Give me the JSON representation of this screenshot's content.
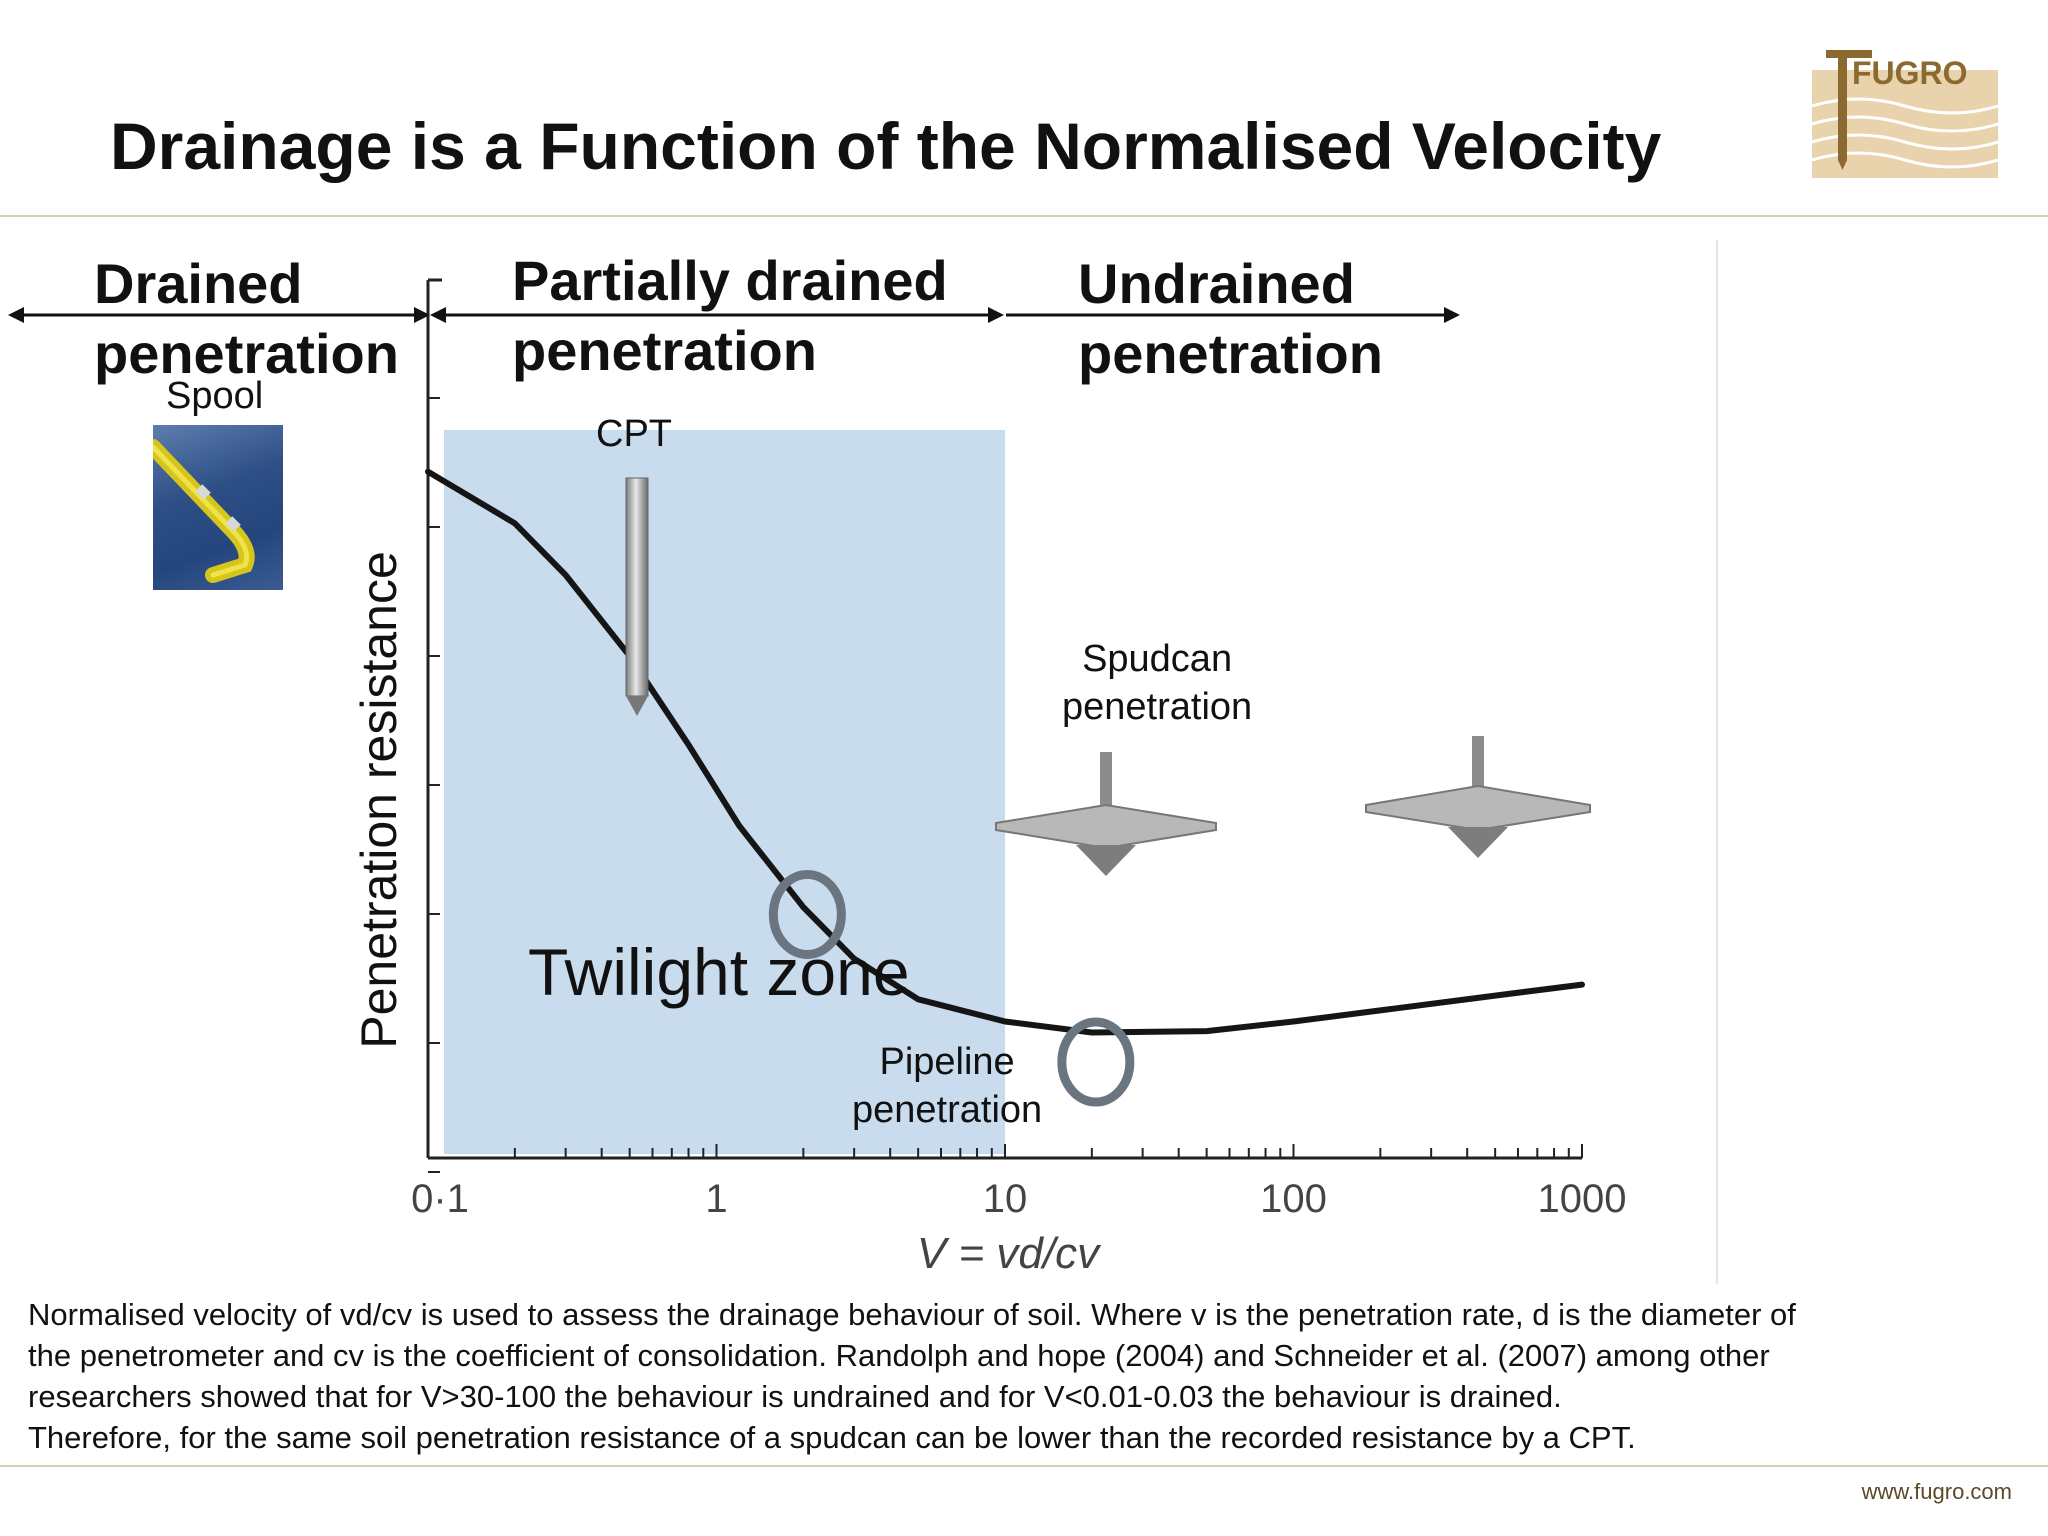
{
  "slide": {
    "title": "Drainage is a Function of the Normalised Velocity",
    "logo_text": "FUGRO",
    "footer_url": "www.fugro.com"
  },
  "zones": {
    "drained": [
      "Drained",
      "penetration"
    ],
    "partial": [
      "Partially drained",
      "penetration"
    ],
    "undrained": [
      "Undrained",
      "penetration"
    ]
  },
  "labels": {
    "spool": "Spool",
    "cpt": "CPT",
    "spudcan": [
      "Spudcan",
      "penetration"
    ],
    "pipeline": [
      "Pipeline",
      "penetration"
    ],
    "twilight": "Twilight zone"
  },
  "chart_data": {
    "type": "line",
    "x_scale": "log",
    "xlim": [
      0.1,
      1000
    ],
    "ylabel": "Penetration resistance",
    "xlabel": "V = vd/cv",
    "x_ticks": [
      {
        "value": 0.1,
        "label": "0·1"
      },
      {
        "value": 1,
        "label": "1"
      },
      {
        "value": 10,
        "label": "10"
      },
      {
        "value": 100,
        "label": "100"
      },
      {
        "value": 1000,
        "label": "1000"
      }
    ],
    "y_ticks": 7,
    "shaded_region": {
      "x": [
        0.1,
        10
      ],
      "label": "Twilight zone",
      "color": "#c9dcee"
    },
    "series": [
      {
        "color": "#151515",
        "points": [
          [
            0.1,
            0.93
          ],
          [
            0.2,
            0.86
          ],
          [
            0.3,
            0.79
          ],
          [
            0.5,
            0.68
          ],
          [
            0.8,
            0.56
          ],
          [
            1.2,
            0.45
          ],
          [
            2,
            0.34
          ],
          [
            3,
            0.27
          ],
          [
            5,
            0.215
          ],
          [
            10,
            0.185
          ],
          [
            20,
            0.17
          ],
          [
            50,
            0.172
          ],
          [
            100,
            0.185
          ],
          [
            200,
            0.2
          ],
          [
            500,
            0.22
          ],
          [
            1000,
            0.235
          ]
        ]
      }
    ],
    "markers": [
      {
        "x": 2,
        "y": 0.33,
        "shape": "circle",
        "color": "#6b7580"
      },
      {
        "x": 20,
        "y": 0.13,
        "shape": "circle",
        "color": "#6b7580"
      }
    ]
  },
  "caption": [
    "Normalised velocity of vd/cv is used to assess the drainage behaviour of soil. Where v is the penetration rate, d is the diameter of",
    "the penetrometer and cv is the coefficient of consolidation. Randolph and hope (2004) and Schneider et al. (2007) among other",
    "researchers showed that for V>30-100 the behaviour is undrained and for V<0.01-0.03 the behaviour is drained.",
    "Therefore, for the same soil penetration resistance of a spudcan can be lower than the recorded resistance by a CPT."
  ]
}
